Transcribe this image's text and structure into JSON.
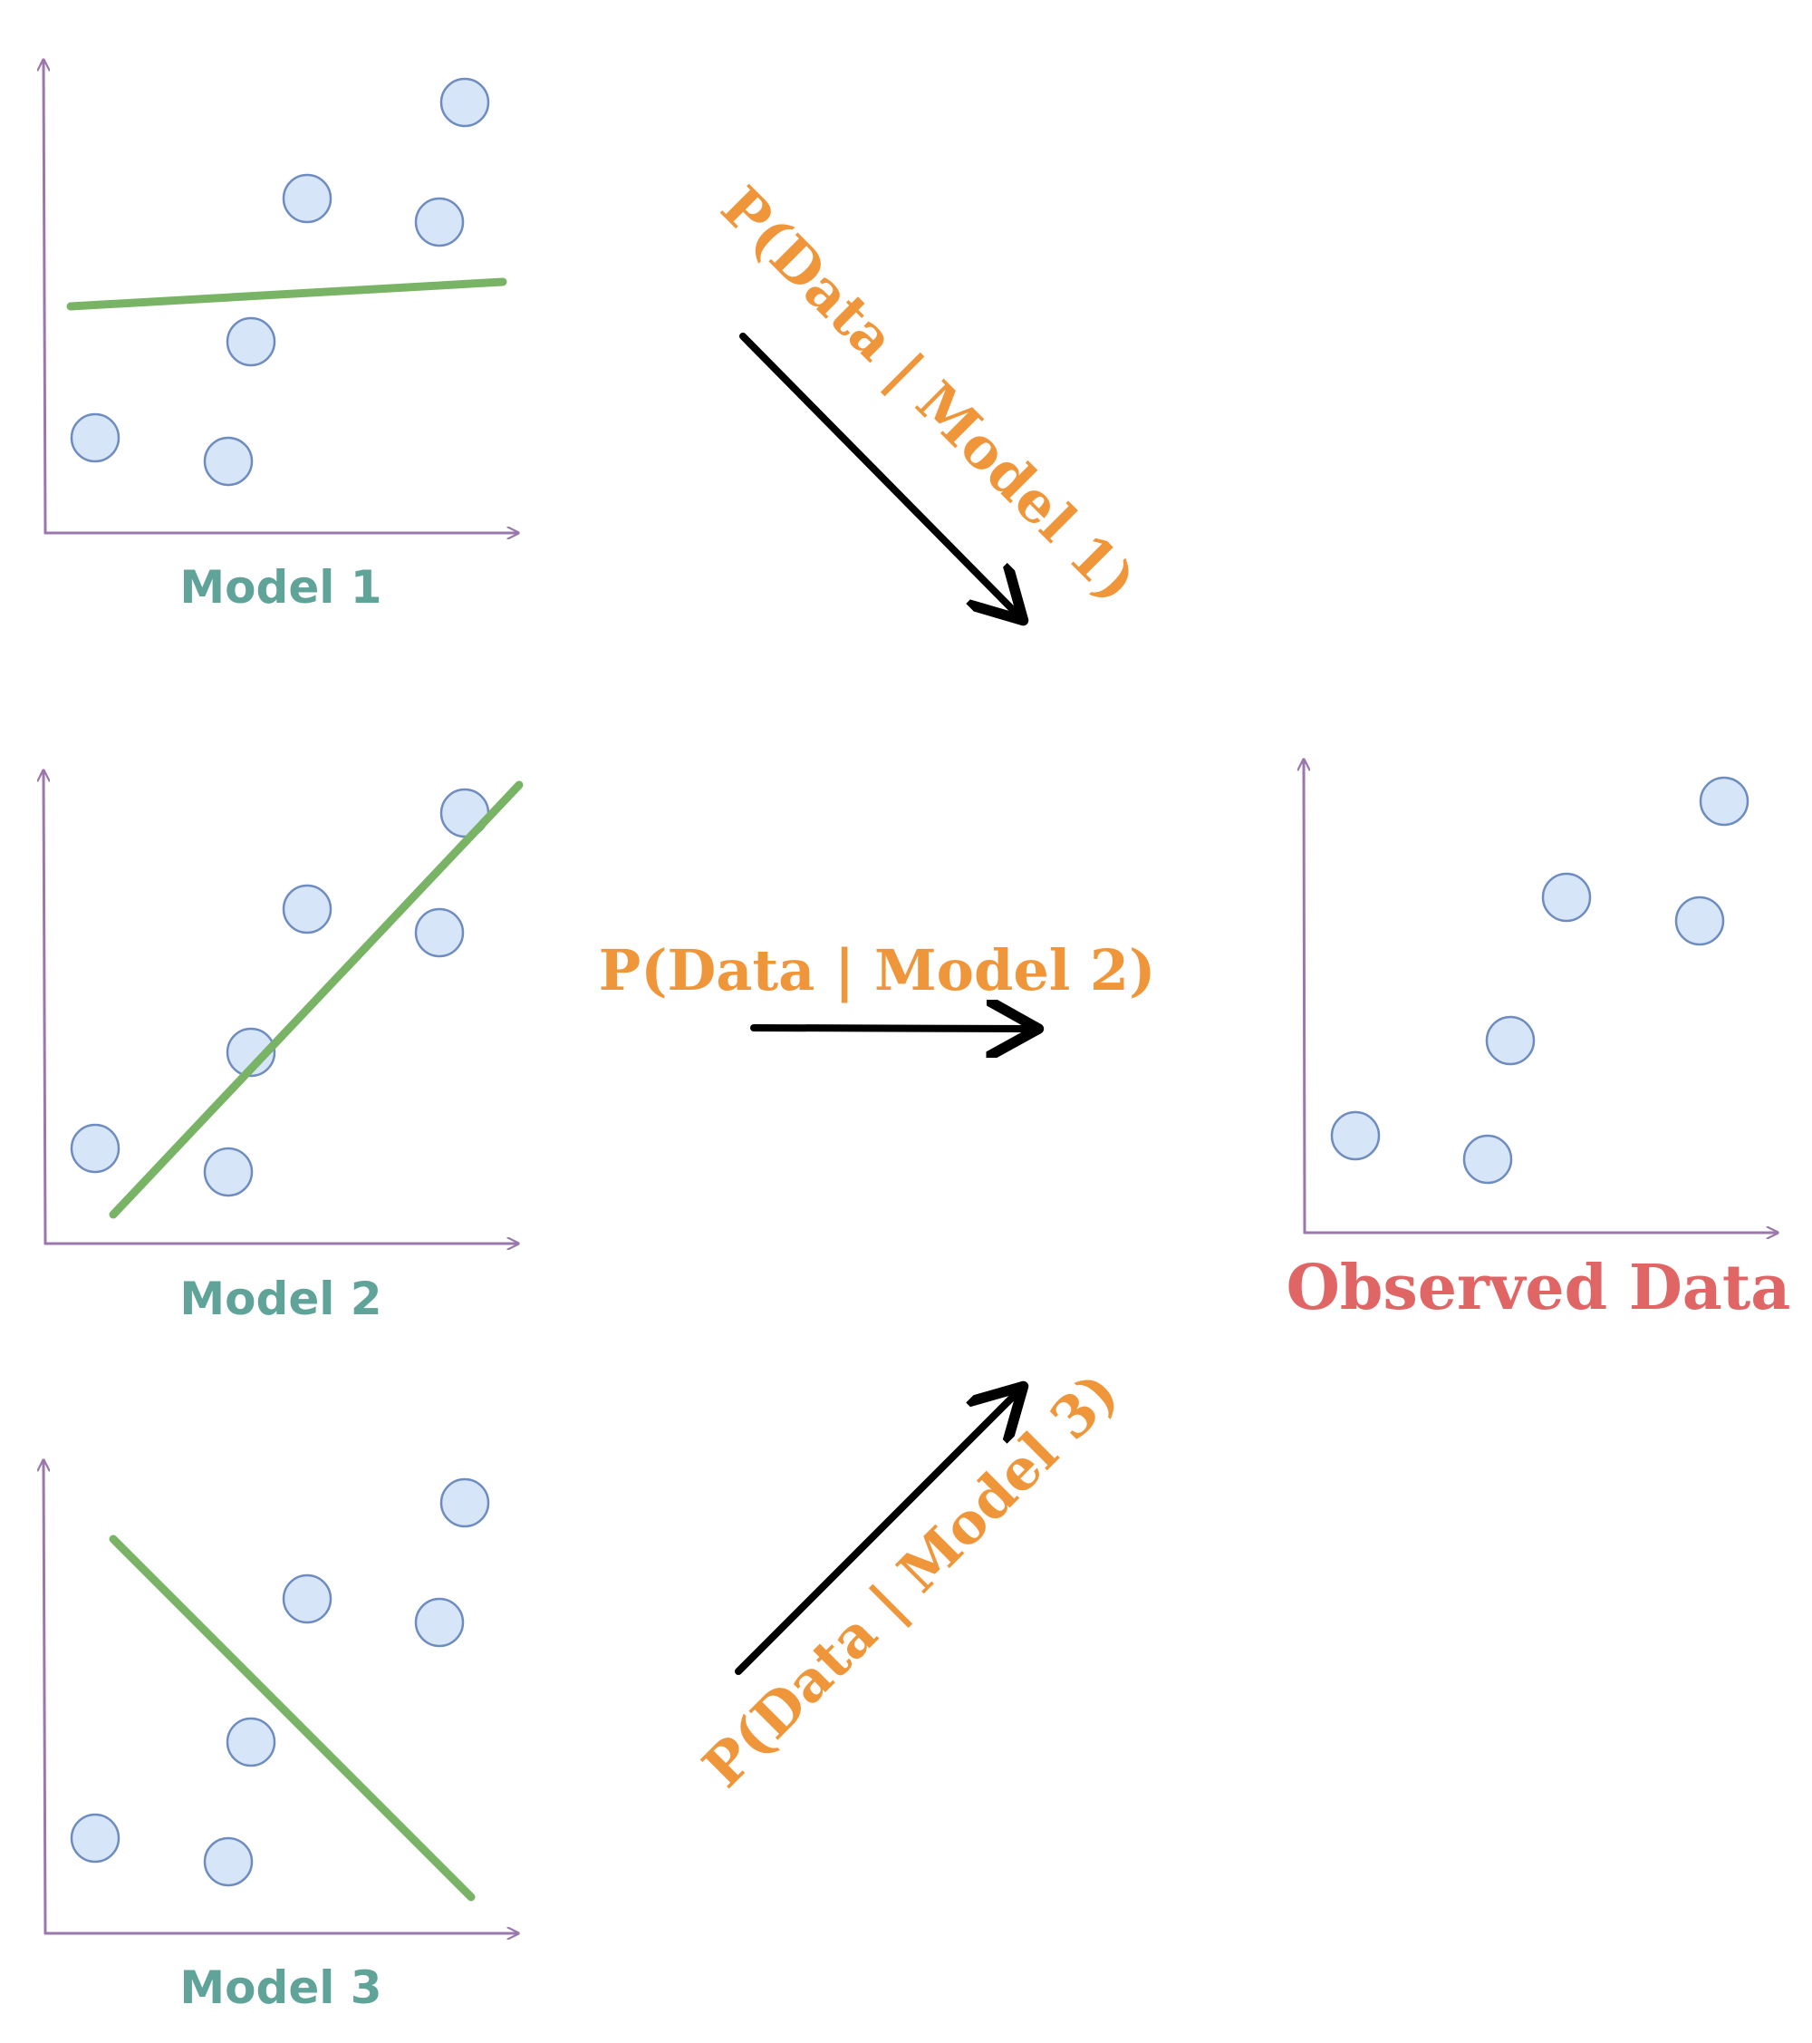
{
  "models": [
    {
      "label": "Model 1",
      "fit_line": "flat"
    },
    {
      "label": "Model 2",
      "fit_line": "increasing"
    },
    {
      "label": "Model 3",
      "fit_line": "decreasing"
    }
  ],
  "likelihoods": [
    "P(Data | Model 1)",
    "P(Data | Model 2)",
    "P(Data | Model 3)"
  ],
  "observed": {
    "label": "Observed Data"
  },
  "colors": {
    "model_label": "#5fa399",
    "likelihood_label": "#f0963a",
    "observed_label": "#e06666",
    "axis": "#9a78ad",
    "point_fill": "#d6e6f8",
    "point_stroke": "#6e8cbf",
    "fit_line": "#79b365",
    "arrow": "#000000"
  }
}
